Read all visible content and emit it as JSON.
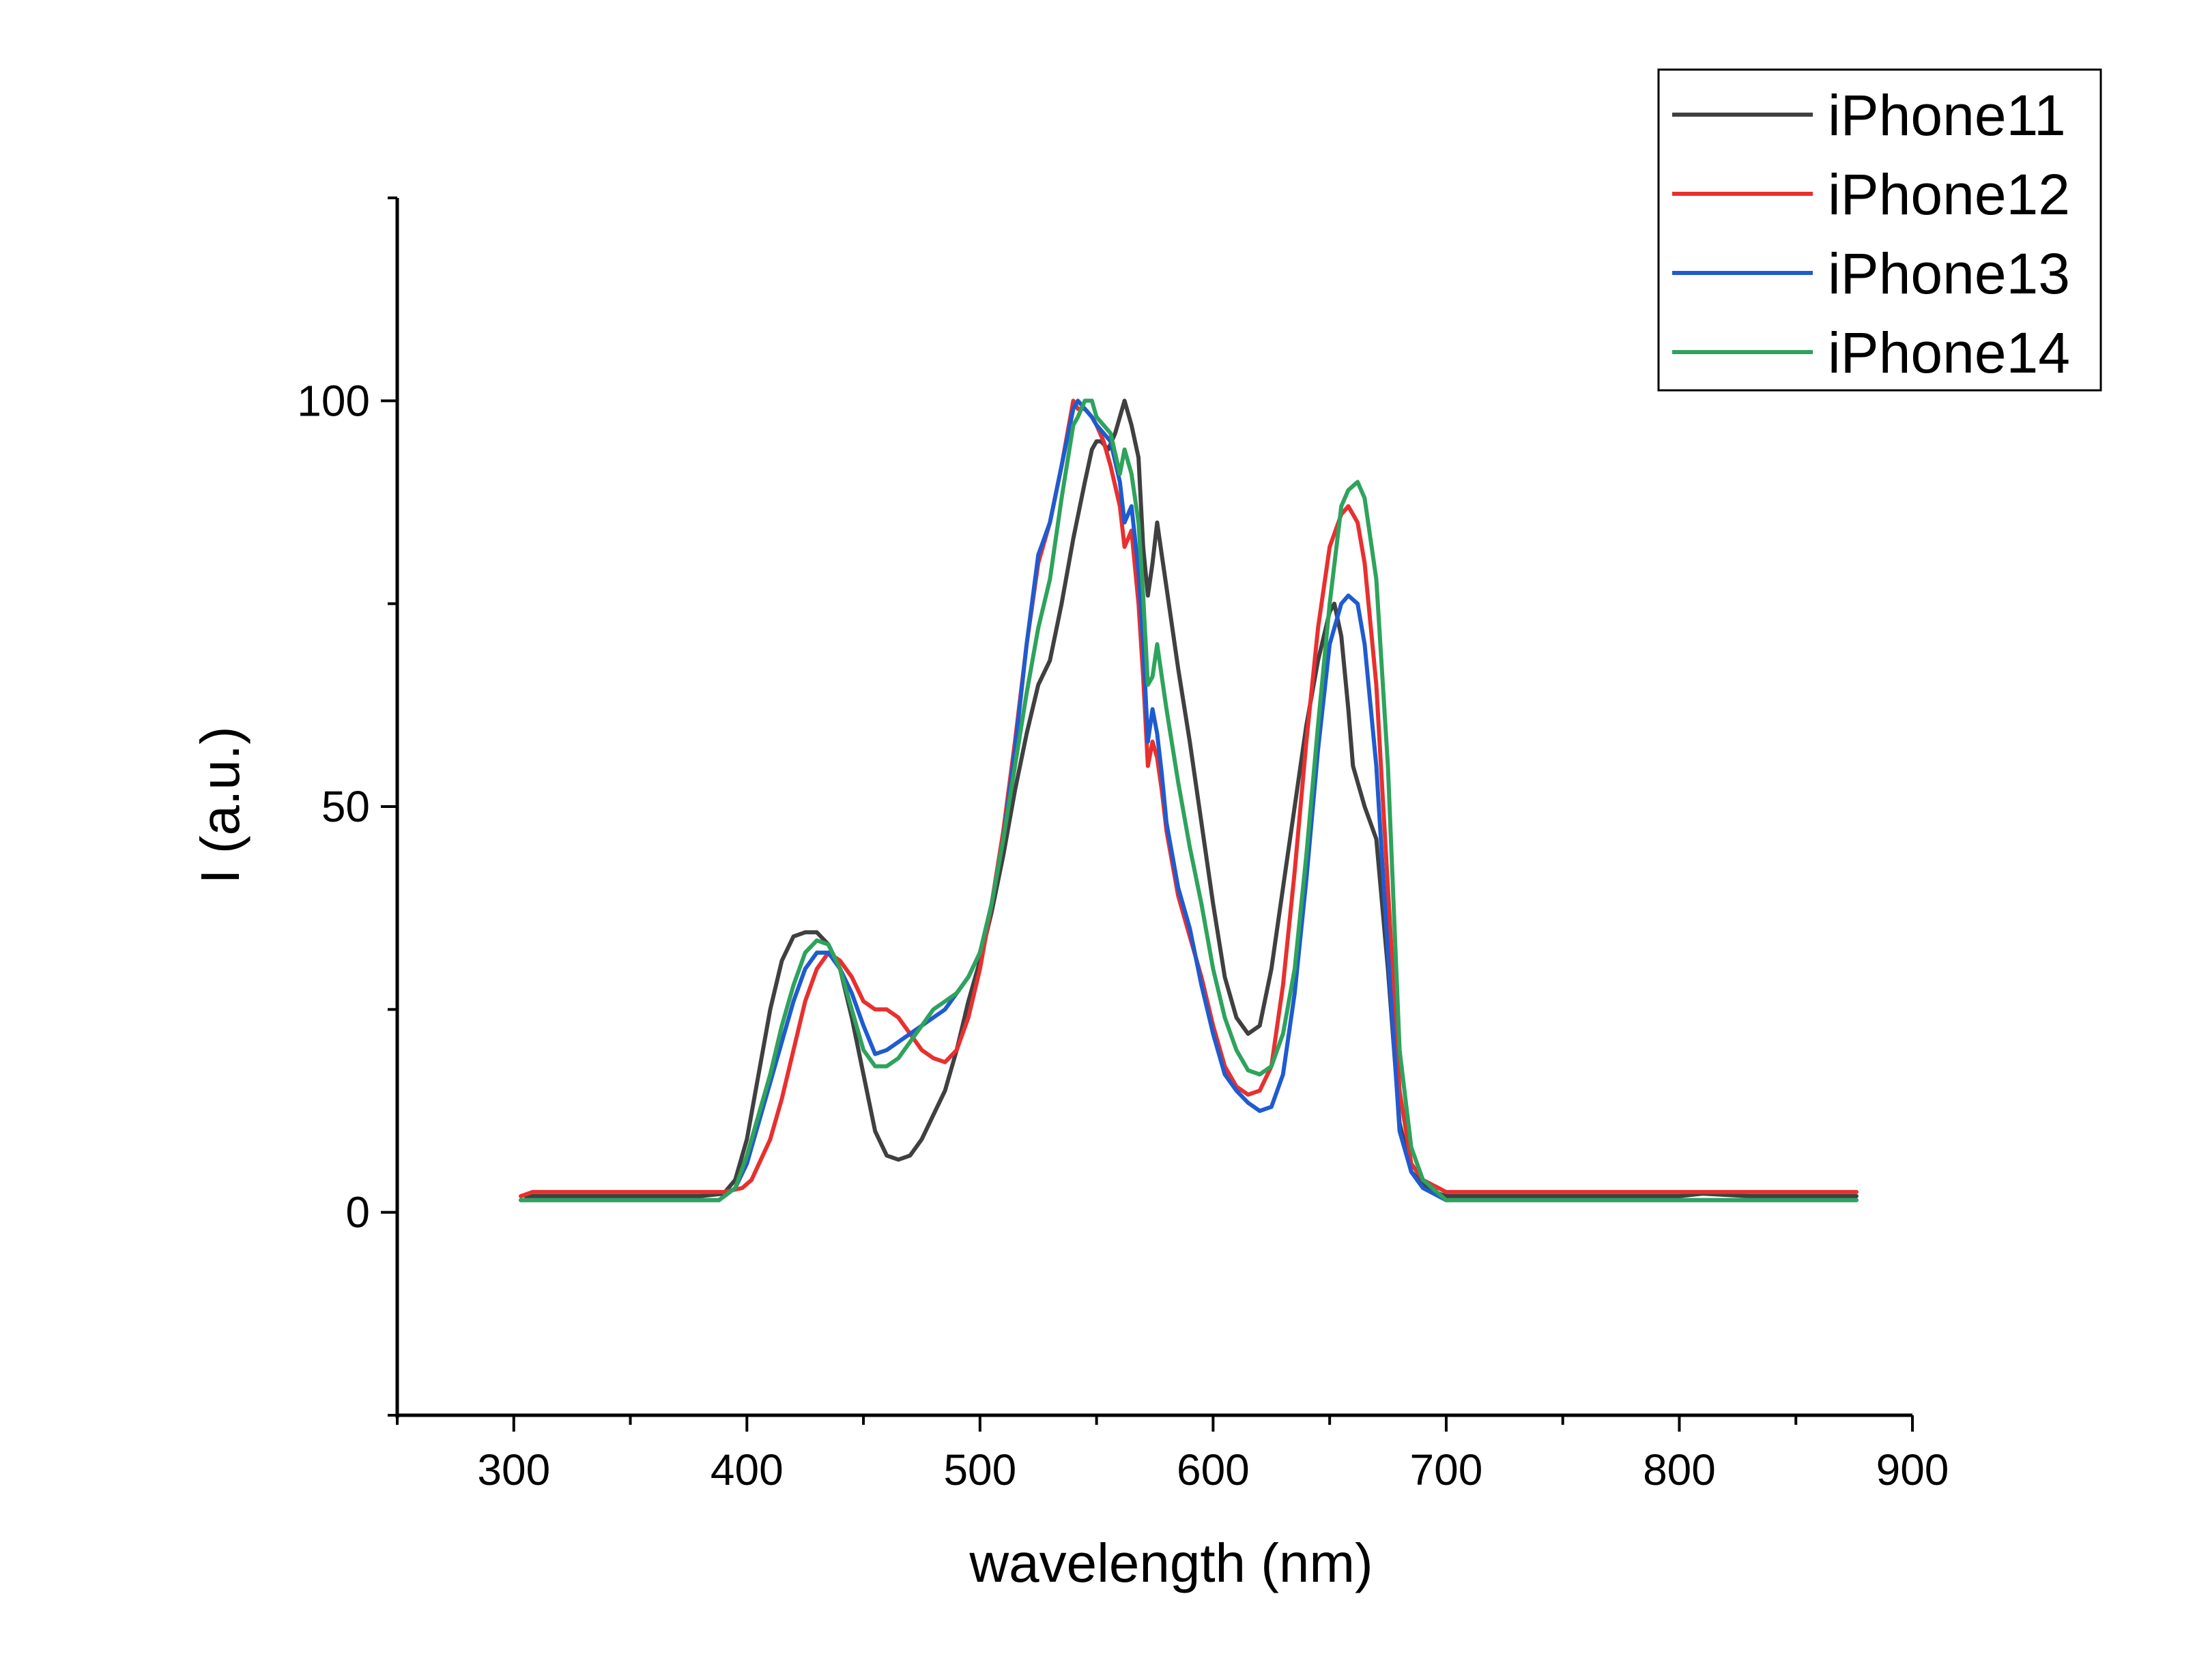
{
  "chart_data": {
    "type": "line",
    "xlabel": "wavelength (nm)",
    "ylabel": "I (a.u.)",
    "xlim": [
      250,
      900
    ],
    "ylim": [
      -25,
      125
    ],
    "x_ticks": [
      300,
      400,
      500,
      600,
      700,
      800,
      900
    ],
    "y_ticks": [
      0,
      50,
      100
    ],
    "grid": false,
    "legend_position": "top-right",
    "series": [
      {
        "name": "iPhone11",
        "color": "#404040",
        "x": [
          305,
          320,
          340,
          360,
          380,
          390,
          395,
          400,
          405,
          410,
          415,
          420,
          425,
          430,
          435,
          440,
          445,
          450,
          455,
          460,
          465,
          470,
          475,
          480,
          485,
          490,
          495,
          500,
          505,
          510,
          515,
          520,
          525,
          530,
          535,
          540,
          545,
          548,
          550,
          552,
          555,
          558,
          562,
          565,
          568,
          570,
          572,
          574,
          576,
          578,
          580,
          585,
          590,
          595,
          600,
          605,
          610,
          615,
          620,
          625,
          630,
          635,
          640,
          645,
          650,
          652,
          655,
          658,
          660,
          665,
          670,
          675,
          680,
          685,
          690,
          695,
          700,
          720,
          760,
          800,
          810,
          830,
          876
        ],
        "values": [
          2,
          2,
          2,
          2,
          2,
          2.3,
          4,
          9,
          17,
          25,
          31,
          34,
          34.5,
          34.5,
          33,
          30,
          24,
          17,
          10,
          7,
          6.5,
          7,
          9,
          12,
          15,
          20,
          26,
          31,
          37,
          44,
          52,
          59,
          65,
          68,
          75,
          83,
          90,
          94,
          95,
          95,
          94,
          96,
          100,
          97,
          93,
          82,
          76,
          80,
          85,
          81,
          77,
          67,
          58,
          48,
          38,
          29,
          24,
          22,
          23,
          30,
          40,
          50,
          60,
          68,
          74,
          75,
          71,
          62,
          55,
          50,
          46,
          30,
          11,
          5,
          3.5,
          2.5,
          2,
          2,
          2,
          2,
          2.3,
          2,
          2
        ]
      },
      {
        "name": "iPhone12",
        "color": "#e8302f",
        "x": [
          303,
          308,
          320,
          340,
          360,
          380,
          390,
          398,
          402,
          410,
          415,
          420,
          425,
          430,
          435,
          440,
          445,
          450,
          455,
          460,
          465,
          470,
          475,
          480,
          485,
          490,
          495,
          500,
          505,
          510,
          515,
          520,
          525,
          530,
          535,
          540,
          542,
          545,
          548,
          550,
          553,
          556,
          560,
          562,
          565,
          568,
          570,
          572,
          574,
          576,
          578,
          580,
          585,
          590,
          595,
          600,
          605,
          610,
          615,
          620,
          625,
          630,
          635,
          640,
          645,
          650,
          655,
          658,
          662,
          665,
          670,
          675,
          680,
          685,
          690,
          700,
          720,
          760,
          800,
          876
        ],
        "values": [
          2,
          2.5,
          2.5,
          2.5,
          2.5,
          2.5,
          2.5,
          3,
          4,
          9,
          14,
          20,
          26,
          30,
          32,
          31,
          29,
          26,
          25,
          25,
          24,
          22,
          20,
          19,
          18.5,
          20,
          24,
          30,
          38,
          47,
          58,
          70,
          80,
          85,
          92,
          100,
          99,
          99,
          98,
          97,
          95,
          92,
          87,
          82,
          84,
          75,
          66,
          55,
          58,
          56,
          52,
          47,
          39,
          34,
          29,
          23,
          18,
          15.5,
          14.5,
          15,
          18,
          28,
          42,
          58,
          72,
          82,
          86,
          87,
          85,
          80,
          65,
          40,
          15,
          6,
          4,
          2.5,
          2.5,
          2.5,
          2.5,
          2.5
        ]
      },
      {
        "name": "iPhone13",
        "color": "#1f5bd0",
        "x": [
          303,
          320,
          340,
          360,
          380,
          388,
          395,
          400,
          405,
          410,
          415,
          420,
          425,
          430,
          435,
          440,
          445,
          450,
          455,
          460,
          465,
          470,
          475,
          480,
          485,
          490,
          495,
          500,
          505,
          510,
          515,
          520,
          525,
          530,
          535,
          540,
          542,
          545,
          548,
          550,
          553,
          556,
          560,
          562,
          565,
          568,
          570,
          572,
          574,
          576,
          578,
          580,
          585,
          590,
          595,
          600,
          605,
          610,
          615,
          620,
          625,
          630,
          635,
          640,
          645,
          650,
          655,
          658,
          662,
          665,
          670,
          675,
          680,
          685,
          690,
          700,
          720,
          760,
          800,
          876
        ],
        "values": [
          1.5,
          1.5,
          1.5,
          1.5,
          1.5,
          1.5,
          3,
          6,
          11,
          16,
          21,
          26,
          30,
          32,
          32,
          30,
          27,
          23,
          19.5,
          20,
          21,
          22,
          23,
          24,
          25,
          27,
          29,
          32,
          38,
          46,
          57,
          70,
          81,
          85,
          92,
          99,
          100,
          99,
          98,
          97,
          96,
          95,
          90,
          85,
          87,
          79,
          70,
          58,
          62,
          59,
          54,
          48,
          40,
          35,
          28,
          22,
          17,
          15,
          13.5,
          12.5,
          13,
          17,
          27,
          41,
          57,
          70,
          75,
          76,
          75,
          70,
          55,
          32,
          10,
          5,
          3,
          1.5,
          1.5,
          1.5,
          1.5,
          1.5
        ]
      },
      {
        "name": "iPhone14",
        "color": "#2ea35c",
        "x": [
          303,
          320,
          340,
          360,
          380,
          388,
          395,
          400,
          405,
          410,
          415,
          420,
          425,
          430,
          435,
          440,
          445,
          450,
          455,
          460,
          465,
          470,
          475,
          480,
          485,
          490,
          495,
          500,
          505,
          510,
          515,
          520,
          525,
          530,
          535,
          540,
          542,
          545,
          548,
          550,
          553,
          556,
          560,
          562,
          565,
          568,
          570,
          572,
          574,
          576,
          578,
          580,
          585,
          590,
          595,
          600,
          605,
          610,
          615,
          620,
          625,
          630,
          635,
          640,
          645,
          650,
          655,
          658,
          662,
          665,
          670,
          675,
          680,
          685,
          690,
          700,
          720,
          760,
          800,
          876
        ],
        "values": [
          1.5,
          1.5,
          1.5,
          1.5,
          1.5,
          1.5,
          3,
          7,
          12,
          17,
          23,
          28,
          32,
          33.5,
          33,
          30,
          25,
          20,
          18,
          18,
          19,
          21,
          23,
          25,
          26,
          27,
          29,
          32,
          38,
          46,
          55,
          64,
          72,
          78,
          88,
          97,
          98,
          100,
          100,
          98,
          97,
          96,
          91,
          94,
          91,
          85,
          76,
          65,
          66,
          70,
          66,
          62,
          53,
          45,
          38,
          30,
          24,
          20,
          17.5,
          17,
          18,
          22,
          30,
          44,
          60,
          75,
          87,
          89,
          90,
          88,
          78,
          55,
          20,
          8,
          4,
          1.5,
          1.5,
          1.5,
          1.5,
          1.5
        ]
      }
    ]
  }
}
